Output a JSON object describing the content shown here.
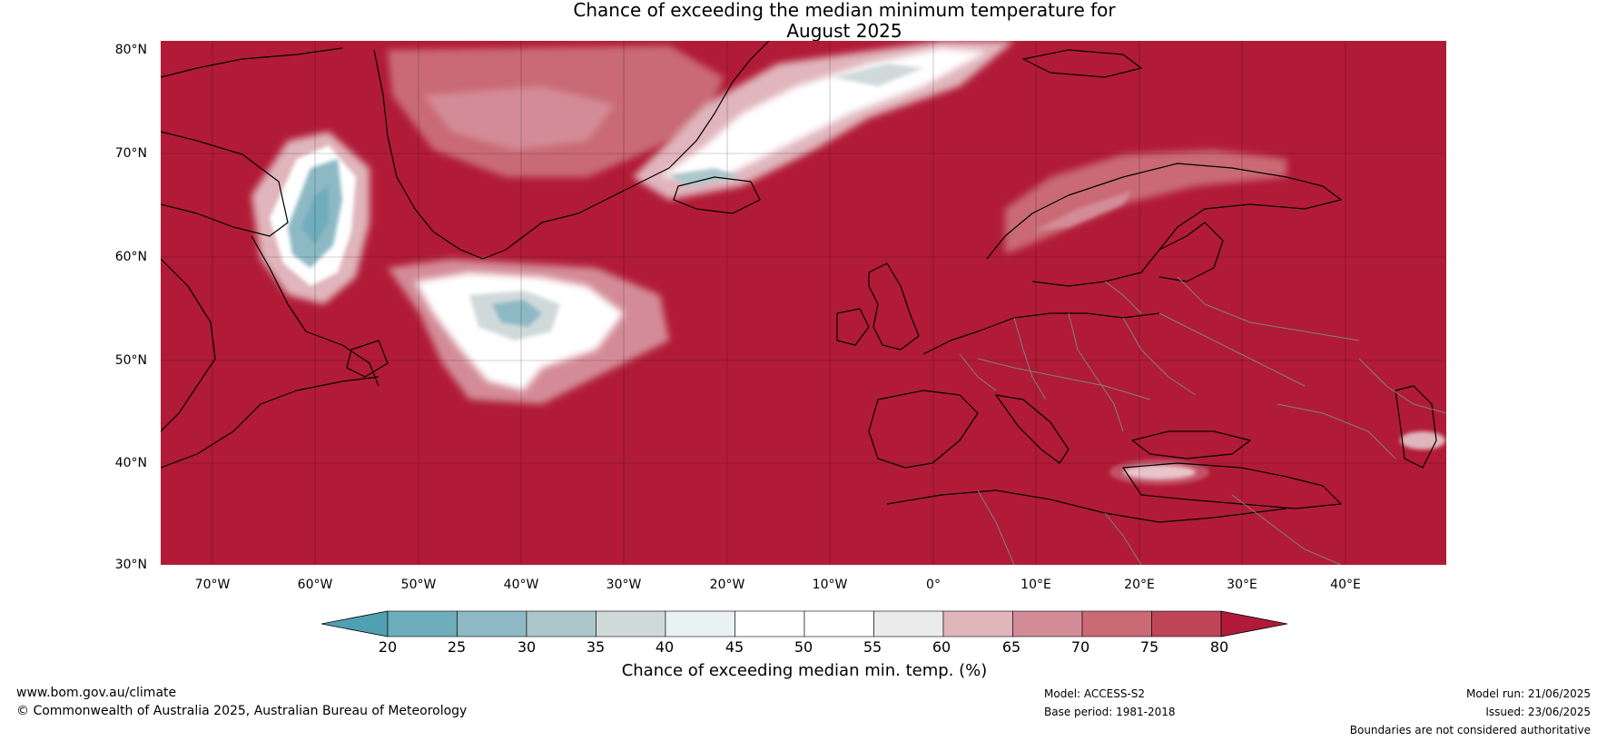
{
  "title": {
    "line1": "Chance of exceeding the median minimum temperature for",
    "line2": "August 2025"
  },
  "map": {
    "latitude_labels": [
      "80°N",
      "70°N",
      "60°N",
      "50°N",
      "40°N",
      "30°N"
    ],
    "longitude_labels": [
      "70°W",
      "60°W",
      "50°W",
      "40°W",
      "30°W",
      "20°W",
      "10°W",
      "0°",
      "10°E",
      "20°E",
      "30°E",
      "40°E"
    ],
    "background_colour": "#b11b37",
    "coast_colour": "#000000",
    "border_colour": "#808080"
  },
  "colorbar": {
    "ticks": [
      "20",
      "25",
      "30",
      "35",
      "40",
      "45",
      "50",
      "55",
      "60",
      "65",
      "70",
      "75",
      "80"
    ],
    "colors": [
      "#4fa1b2",
      "#6eadbc",
      "#8db9c4",
      "#abc7cc",
      "#d0d9da",
      "#eaf1f2",
      "#ffffff",
      "#ffffff",
      "#ecebec",
      "#e0b5bc",
      "#d38c97",
      "#c96a75",
      "#be4555",
      "#b11b37"
    ],
    "label": "Chance of exceeding median min. temp. (%)"
  },
  "footer": {
    "url": "www.bom.gov.au/climate",
    "copyright": "© Commonwealth of Australia 2025, Australian Bureau of Meteorology",
    "model": "Model: ACCESS-S2",
    "base_period": "Base period: 1981-2018",
    "model_run": "Model run: 21/06/2025",
    "issued": "Issued: 23/06/2025",
    "disclaimer": "Boundaries are not considered authoritative"
  }
}
